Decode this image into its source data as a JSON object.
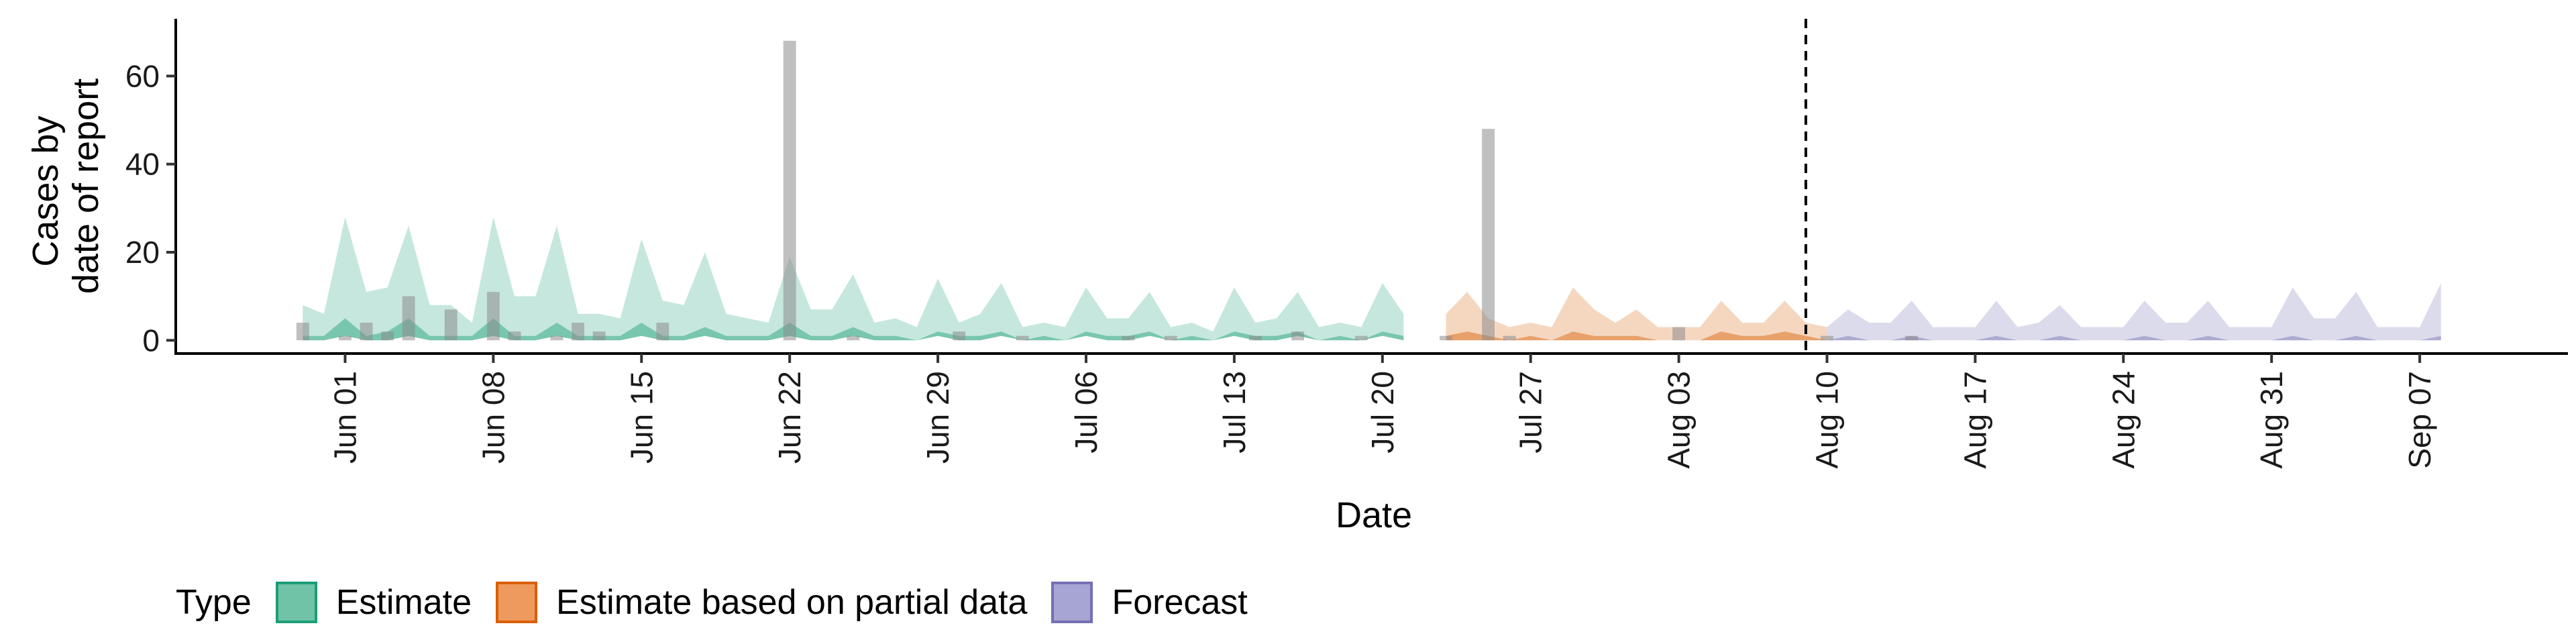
{
  "chart_data": {
    "type": "area",
    "xlabel": "Date",
    "ylabel_lines": [
      "Cases by",
      "date of report"
    ],
    "x_start": "2020-05-30",
    "x_range": [
      "2020-05-24",
      "2020-09-14"
    ],
    "ylim": [
      -3,
      73
    ],
    "yticks": [
      0,
      20,
      40,
      60
    ],
    "x_ticks": [
      {
        "date": "2020-06-01",
        "label": "Jun 01"
      },
      {
        "date": "2020-06-08",
        "label": "Jun 08"
      },
      {
        "date": "2020-06-15",
        "label": "Jun 15"
      },
      {
        "date": "2020-06-22",
        "label": "Jun 22"
      },
      {
        "date": "2020-06-29",
        "label": "Jun 29"
      },
      {
        "date": "2020-07-06",
        "label": "Jul 06"
      },
      {
        "date": "2020-07-13",
        "label": "Jul 13"
      },
      {
        "date": "2020-07-20",
        "label": "Jul 20"
      },
      {
        "date": "2020-07-27",
        "label": "Jul 27"
      },
      {
        "date": "2020-08-03",
        "label": "Aug 03"
      },
      {
        "date": "2020-08-10",
        "label": "Aug 10"
      },
      {
        "date": "2020-08-17",
        "label": "Aug 17"
      },
      {
        "date": "2020-08-24",
        "label": "Aug 24"
      },
      {
        "date": "2020-08-31",
        "label": "Aug 31"
      },
      {
        "date": "2020-09-07",
        "label": "Sep 07"
      }
    ],
    "forecast_start_line": "2020-08-09",
    "grid": false,
    "legend_position": "bottom",
    "observed_cases": [
      4,
      0,
      1,
      4,
      2,
      10,
      0,
      7,
      0,
      11,
      2,
      0,
      1,
      4,
      2,
      0,
      0,
      4,
      0,
      0,
      0,
      0,
      0,
      68,
      0,
      0,
      1,
      0,
      0,
      0,
      0,
      2,
      0,
      0,
      1,
      0,
      0,
      0,
      0,
      1,
      0,
      1,
      0,
      0,
      0,
      1,
      0,
      2,
      0,
      0,
      1,
      0,
      0,
      0,
      1,
      0,
      48,
      1,
      0,
      0,
      0,
      0,
      0,
      0,
      0,
      3,
      0,
      0,
      0,
      0,
      0,
      0,
      1,
      0,
      0,
      0,
      1
    ],
    "series": [
      {
        "name": "Estimate",
        "color": "#1B9E77",
        "start_index": 0,
        "upper": [
          8,
          6,
          28,
          11,
          12,
          26,
          8,
          8,
          4,
          28,
          10,
          10,
          26,
          6,
          6,
          5,
          23,
          9,
          8,
          20,
          6,
          5,
          4,
          19,
          7,
          7,
          15,
          4,
          5,
          3,
          14,
          4,
          6,
          13,
          3,
          4,
          3,
          12,
          5,
          5,
          11,
          3,
          4,
          2,
          12,
          4,
          5,
          11,
          3,
          4,
          3,
          13,
          6
        ],
        "lower": [
          0,
          0,
          1,
          0,
          0,
          1,
          0,
          0,
          0,
          1,
          0,
          0,
          1,
          0,
          0,
          0,
          1,
          0,
          0,
          1,
          0,
          0,
          0,
          1,
          0,
          0,
          1,
          0,
          0,
          0,
          1,
          0,
          0,
          1,
          0,
          0,
          0,
          1,
          0,
          0,
          1,
          0,
          0,
          0,
          1,
          0,
          0,
          1,
          0,
          0,
          0,
          1,
          0
        ],
        "mid_upper": [
          1,
          1,
          5,
          1,
          2,
          5,
          1,
          1,
          1,
          5,
          1,
          1,
          4,
          1,
          1,
          1,
          4,
          1,
          1,
          3,
          1,
          1,
          1,
          4,
          1,
          1,
          3,
          1,
          1,
          0,
          2,
          1,
          1,
          2,
          0,
          1,
          0,
          2,
          1,
          1,
          2,
          0,
          1,
          0,
          2,
          1,
          1,
          2,
          0,
          1,
          0,
          2,
          1
        ]
      },
      {
        "name": "Estimate based on partial data",
        "color": "#D95F02",
        "start_index": 54,
        "upper": [
          6,
          11,
          5,
          3,
          4,
          3,
          12,
          7,
          4,
          7,
          3,
          3,
          3,
          9,
          4,
          4,
          9,
          4,
          3
        ],
        "lower": [
          0,
          0,
          0,
          0,
          0,
          0,
          0,
          0,
          0,
          0,
          0,
          0,
          0,
          0,
          0,
          0,
          0,
          0,
          0
        ],
        "mid_upper": [
          1,
          2,
          1,
          0,
          1,
          0,
          2,
          1,
          1,
          1,
          0,
          0,
          0,
          2,
          1,
          1,
          2,
          1,
          0
        ]
      },
      {
        "name": "Forecast",
        "color": "#7570B3",
        "start_index": 72,
        "upper": [
          3,
          7,
          4,
          4,
          9,
          3,
          3,
          3,
          9,
          3,
          4,
          8,
          3,
          3,
          3,
          9,
          4,
          4,
          9,
          3,
          3,
          3,
          12,
          5,
          5,
          11,
          3,
          3,
          3,
          13
        ],
        "lower": [
          0,
          0,
          0,
          0,
          0,
          0,
          0,
          0,
          0,
          0,
          0,
          0,
          0,
          0,
          0,
          0,
          0,
          0,
          0,
          0,
          0,
          0,
          0,
          0,
          0,
          0,
          0,
          0,
          0,
          0
        ],
        "mid_upper": [
          0,
          1,
          0,
          0,
          1,
          0,
          0,
          0,
          1,
          0,
          0,
          1,
          0,
          0,
          0,
          1,
          0,
          0,
          1,
          0,
          0,
          0,
          1,
          0,
          0,
          1,
          0,
          0,
          0,
          1
        ]
      }
    ]
  },
  "legend": {
    "title": "Type",
    "items": [
      {
        "label": "Estimate",
        "fill": "#71C3A7",
        "stroke": "#1B9E77"
      },
      {
        "label": "Estimate based on partial data",
        "fill": "#EE9A5F",
        "stroke": "#D95F02"
      },
      {
        "label": "Forecast",
        "fill": "#A7A5D3",
        "stroke": "#7570B3"
      }
    ]
  }
}
